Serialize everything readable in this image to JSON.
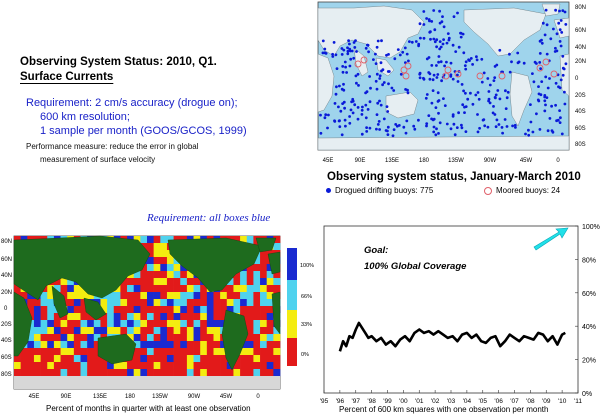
{
  "heading": {
    "title_line1": "Observing System Status:  2010, Q1.",
    "title_line2": "Surface Currents"
  },
  "requirement": {
    "line1": "Requirement: 2 cm/s accuracy (drogue on);",
    "line2": "600 km resolution;",
    "line3": "1 sample per month (GOOS/GCOS, 1999)"
  },
  "performance": {
    "line1": "Performance measure: reduce the error in global",
    "line2": "measurement of surface velocity"
  },
  "buoy_map": {
    "title": "Observing system status, January-March 2010",
    "lon_labels": [
      "45E",
      "90E",
      "135E",
      "180",
      "135W",
      "90W",
      "45W",
      "0"
    ],
    "lat_labels": [
      "80N",
      "60N",
      "40N",
      "20N",
      "0",
      "20S",
      "40S",
      "60S",
      "80S"
    ],
    "legend_drifting": "Drogued drifting buoys: 775",
    "legend_moored": "Moored buoys: 24",
    "drifting_color": "#0a1ad8",
    "moored_color": "#e0606a"
  },
  "coverage_map": {
    "requirement_label": "Requirement: all boxes blue",
    "lon_labels": [
      "45E",
      "90E",
      "135E",
      "180",
      "135W",
      "90W",
      "45W",
      "0"
    ],
    "lat_labels": [
      "80N",
      "60N",
      "40N",
      "20N",
      "0",
      "20S",
      "40S",
      "60S",
      "80S"
    ],
    "scale_labels": [
      "100%",
      "66%",
      "33%",
      "0%"
    ],
    "scale_colors": [
      "#1a2ad0",
      "#4fd2ee",
      "#f4ec10",
      "#e21a1a"
    ],
    "caption": "Percent of months in quarter with at least one observation"
  },
  "chart_data": {
    "type": "line",
    "annotation_line1": "Goal:",
    "annotation_line2": "100% Global Coverage",
    "xlabel": "Percent of 600 km squares with one observation per month",
    "x_ticks": [
      "'95",
      "'96",
      "'97",
      "'98",
      "'99",
      "'00",
      "'01",
      "'02",
      "'03",
      "'04",
      "'05",
      "'06",
      "'07",
      "'08",
      "'09",
      "'10",
      "'11"
    ],
    "y_ticks": [
      "0%",
      "20%",
      "40%",
      "60%",
      "80%",
      "100%"
    ],
    "ylim": [
      0,
      100
    ],
    "xlim": [
      1995,
      2011
    ],
    "series": [
      {
        "x": [
          1996.0,
          1996.2,
          1996.4,
          1996.6,
          1996.8,
          1997.0,
          1997.2,
          1997.4,
          1997.6,
          1997.8,
          1998.0,
          1998.3,
          1998.6,
          1998.9,
          1999.2,
          1999.5,
          1999.8,
          2000.1,
          2000.4,
          2000.7,
          2001.0,
          2001.3,
          2001.6,
          2001.9,
          2002.2,
          2002.5,
          2002.8,
          2003.1,
          2003.4,
          2003.7,
          2004.0,
          2004.3,
          2004.6,
          2004.9,
          2005.2,
          2005.5,
          2005.8,
          2006.1,
          2006.4,
          2006.7,
          2007.0,
          2007.3,
          2007.6,
          2007.9,
          2008.2,
          2008.5,
          2008.8,
          2009.1,
          2009.4,
          2009.7,
          2010.0,
          2010.2
        ],
        "y": [
          25,
          31,
          28,
          34,
          33,
          38,
          42,
          39,
          36,
          33,
          34,
          31,
          33,
          29,
          31,
          28,
          32,
          34,
          31,
          36,
          38,
          36,
          37,
          35,
          37,
          35,
          33,
          34,
          31,
          35,
          36,
          33,
          35,
          31,
          30,
          33,
          34,
          28,
          31,
          35,
          33,
          31,
          34,
          33,
          32,
          36,
          35,
          31,
          34,
          29,
          35,
          36
        ]
      }
    ],
    "goal_arrow_color": "#20e0e8"
  }
}
